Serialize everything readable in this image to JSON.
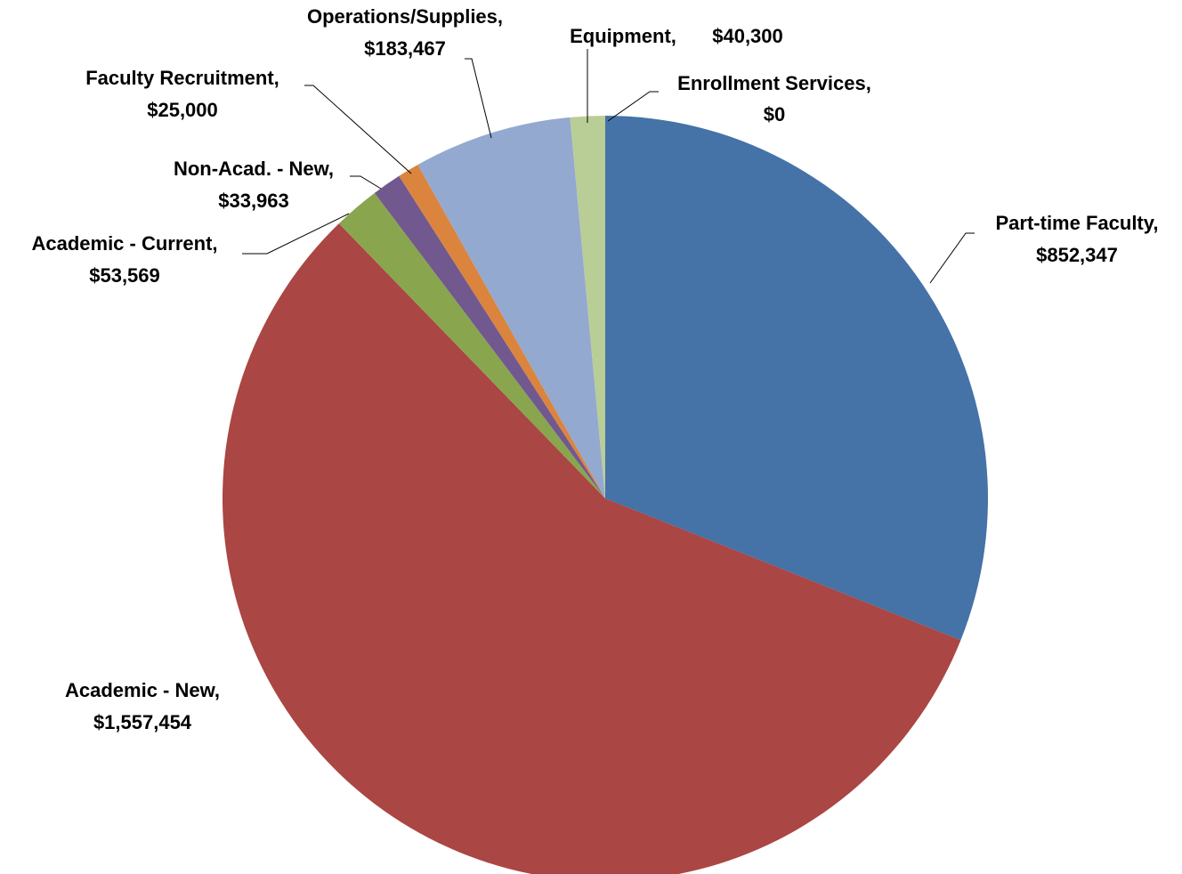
{
  "chart_data": {
    "type": "pie",
    "categories": [
      "Part-time Faculty,",
      "Academic - New,",
      "Academic - Current,",
      "Non-Acad. - New,",
      "Faculty Recruitment,",
      "Operations/Supplies,",
      "Equipment,",
      "Enrollment Services,"
    ],
    "values": [
      852347,
      1557454,
      53569,
      33963,
      25000,
      183467,
      40300,
      0
    ],
    "value_labels": [
      "$852,347",
      "$1,557,454",
      "$53,569",
      "$33,963",
      "$25,000",
      "$183,467",
      "$40,300",
      "$0"
    ],
    "colors": [
      "#4572a7",
      "#aa4643",
      "#89a54e",
      "#71588f",
      "#db843d",
      "#93a9cf",
      "#b9cd96",
      "#4198af"
    ]
  }
}
